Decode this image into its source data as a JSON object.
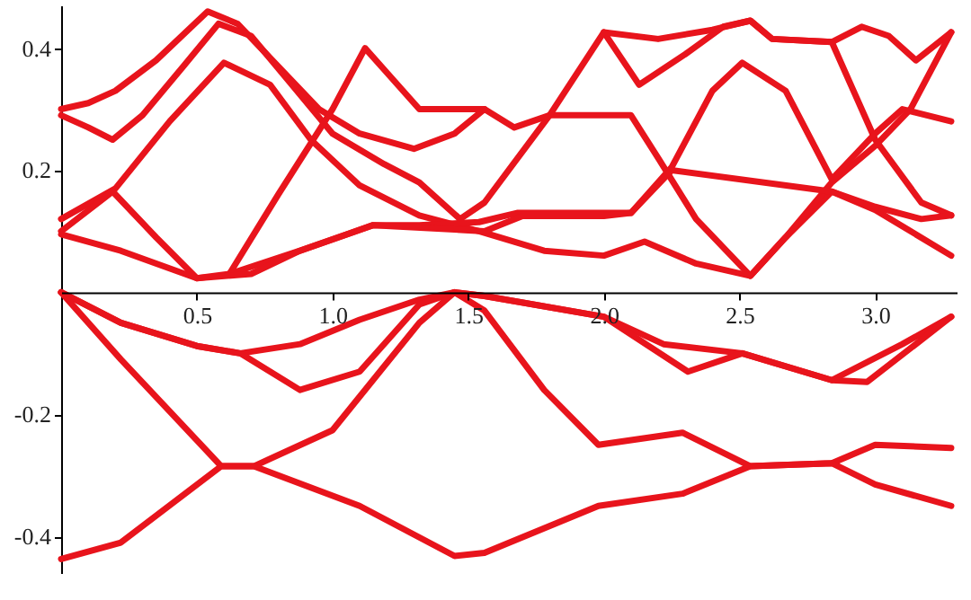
{
  "chart_data": {
    "type": "line",
    "xlim": [
      0,
      3.3
    ],
    "ylim": [
      -0.46,
      0.47
    ],
    "xticks": [
      0.5,
      {
        "value": 1,
        "label": "1.0"
      },
      1.5,
      {
        "value": 2,
        "label": "2.0"
      },
      2.5,
      {
        "value": 3,
        "label": "3.0"
      }
    ],
    "yticks": [
      -0.4,
      -0.2,
      0.2,
      0.4
    ],
    "series": [
      {
        "color": "#e8141c",
        "x": [
          0,
          0.1,
          0.2,
          0.35,
          0.54,
          0.65,
          0.8,
          0.95,
          1.1,
          1.3,
          1.45,
          1.56,
          1.67,
          1.8,
          2.0,
          2.1,
          2.2,
          2.34,
          2.54,
          2.67,
          2.84,
          3.0,
          3.28
        ],
        "values": [
          0.3,
          0.31,
          0.33,
          0.38,
          0.46,
          0.44,
          0.37,
          0.3,
          0.26,
          0.235,
          0.26,
          0.3,
          0.27,
          0.29,
          0.29,
          0.29,
          0.22,
          0.12,
          0.027,
          0.09,
          0.165,
          0.135,
          0.06
        ]
      },
      {
        "color": "#e8141c",
        "x": [
          0,
          0.1,
          0.19,
          0.3,
          0.45,
          0.58,
          0.7,
          0.85,
          1.0,
          1.19,
          1.32,
          1.47,
          1.56,
          1.8,
          2.0,
          2.13,
          2.3,
          2.44,
          2.54,
          2.62,
          2.84,
          2.92,
          3.0,
          3.17,
          3.28
        ],
        "values": [
          0.29,
          0.27,
          0.25,
          0.29,
          0.37,
          0.44,
          0.42,
          0.34,
          0.26,
          0.21,
          0.18,
          0.12,
          0.147,
          0.29,
          0.426,
          0.34,
          0.39,
          0.435,
          0.445,
          0.415,
          0.41,
          0.33,
          0.25,
          0.147,
          0.126
        ]
      },
      {
        "color": "#e8141c",
        "x": [
          0.62,
          0.8,
          1.0,
          1.12,
          1.2,
          1.32,
          1.56
        ],
        "values": [
          0.03,
          0.16,
          0.3,
          0.4,
          0.36,
          0.3,
          0.3
        ]
      },
      {
        "color": "#e8141c",
        "x": [
          2.0,
          2.2,
          2.4,
          2.54,
          2.62,
          2.84,
          2.95,
          3.05,
          3.15,
          3.28
        ],
        "values": [
          0.426,
          0.415,
          0.43,
          0.445,
          0.415,
          0.41,
          0.435,
          0.42,
          0.38,
          0.426
        ]
      },
      {
        "color": "#e8141c",
        "x": [
          0,
          0.2,
          0.4,
          0.6,
          0.77,
          0.92,
          1.1,
          1.32,
          1.54,
          1.78,
          2.0,
          2.15,
          2.34,
          2.54,
          2.67,
          2.84,
          3.0,
          3.13,
          3.28
        ],
        "values": [
          0.12,
          0.17,
          0.28,
          0.376,
          0.34,
          0.25,
          0.175,
          0.126,
          0.1,
          0.068,
          0.06,
          0.083,
          0.047,
          0.027,
          0.09,
          0.18,
          0.24,
          0.3,
          0.426
        ]
      },
      {
        "color": "#e8141c",
        "x": [
          0,
          0.19,
          0.35,
          0.5,
          0.62,
          0.88,
          1.15,
          1.32,
          1.54,
          1.68,
          2.0,
          2.1,
          2.25,
          2.4,
          2.51,
          2.67,
          2.84,
          3.0,
          3.1,
          3.28
        ],
        "values": [
          0.1,
          0.165,
          0.09,
          0.023,
          0.03,
          0.068,
          0.11,
          0.11,
          0.115,
          0.13,
          0.13,
          0.13,
          0.205,
          0.33,
          0.376,
          0.33,
          0.185,
          0.26,
          0.3,
          0.28
        ]
      },
      {
        "color": "#e8141c",
        "x": [
          0,
          0.22,
          0.5,
          0.7,
          0.88,
          1.15,
          1.56,
          1.7,
          2.0,
          2.1,
          2.25,
          2.84,
          3.0,
          3.17,
          3.28
        ],
        "values": [
          0.095,
          0.068,
          0.023,
          0.03,
          0.068,
          0.11,
          0.1,
          0.125,
          0.125,
          0.13,
          0.2,
          0.165,
          0.14,
          0.12,
          0.126
        ]
      },
      {
        "color": "#e8141c",
        "x": [
          0,
          0.22,
          0.5,
          0.66,
          0.88,
          1.1,
          1.32,
          1.45,
          1.56,
          2.0,
          2.22,
          2.51,
          2.84,
          3.1,
          3.28
        ],
        "values": [
          0,
          -0.05,
          -0.088,
          -0.1,
          -0.085,
          -0.045,
          -0.012,
          0,
          -0.006,
          -0.04,
          -0.085,
          -0.1,
          -0.144,
          -0.085,
          -0.04
        ]
      },
      {
        "color": "#e8141c",
        "x": [
          0,
          0.22,
          0.5,
          0.66,
          0.88,
          1.1,
          1.32,
          1.45,
          1.56,
          2.0,
          2.31,
          2.51,
          2.84,
          2.97,
          3.28
        ],
        "values": [
          0,
          -0.05,
          -0.088,
          -0.1,
          -0.16,
          -0.13,
          -0.02,
          0,
          -0.006,
          -0.04,
          -0.13,
          -0.1,
          -0.144,
          -0.147,
          -0.04
        ]
      },
      {
        "color": "#e8141c",
        "x": [
          0,
          0.22,
          0.59,
          0.71,
          1.0,
          1.32,
          1.45,
          1.56,
          1.78,
          1.98,
          2.29,
          2.54,
          2.84,
          3.0,
          3.28
        ],
        "values": [
          0,
          -0.11,
          -0.285,
          -0.285,
          -0.226,
          -0.05,
          0,
          -0.03,
          -0.16,
          -0.25,
          -0.23,
          -0.285,
          -0.28,
          -0.25,
          -0.255
        ]
      },
      {
        "color": "#e8141c",
        "x": [
          0,
          0.22,
          0.59,
          0.71,
          1.1,
          1.45,
          1.56,
          1.98,
          2.29,
          2.54,
          2.84,
          3.0,
          3.28
        ],
        "values": [
          -0.437,
          -0.41,
          -0.285,
          -0.285,
          -0.35,
          -0.432,
          -0.427,
          -0.35,
          -0.33,
          -0.285,
          -0.28,
          -0.315,
          -0.35
        ]
      }
    ]
  }
}
